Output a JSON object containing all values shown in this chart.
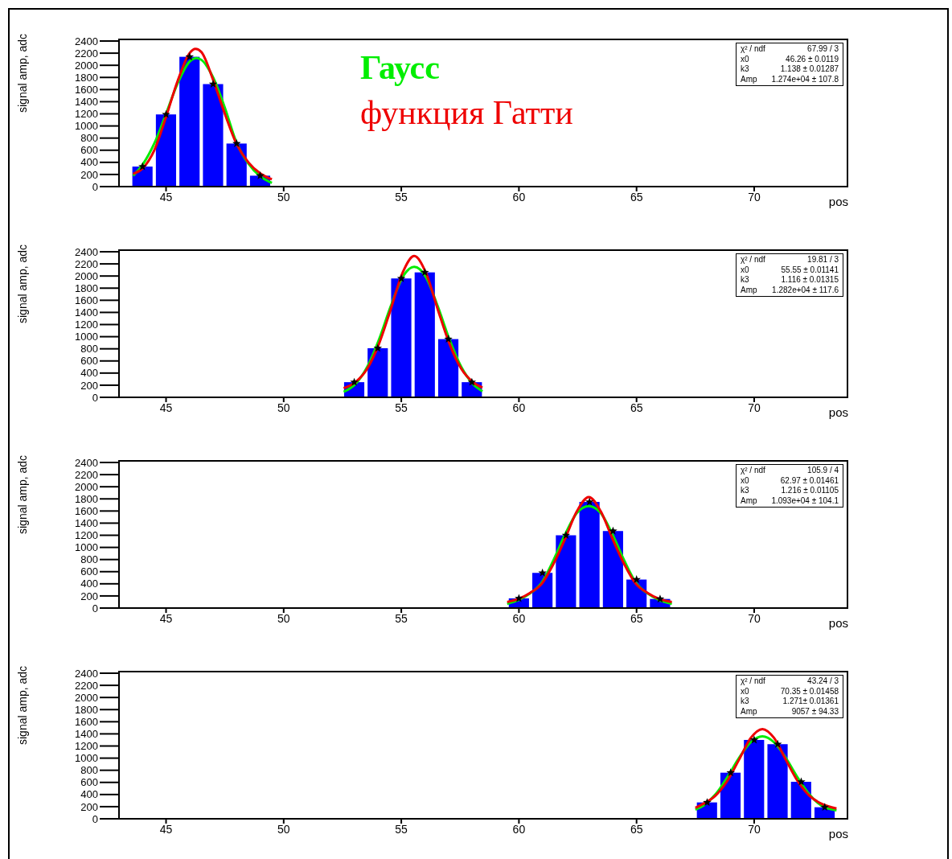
{
  "chart_data": [
    {
      "type": "histogram",
      "ylabel": "signal amp, adc",
      "xlabel": "pos",
      "xlim": [
        43,
        74
      ],
      "xticks": [
        45,
        50,
        55,
        60,
        65,
        70
      ],
      "ylim": [
        0,
        2440
      ],
      "yticks": [
        0,
        200,
        400,
        600,
        800,
        1000,
        1200,
        1400,
        1600,
        1800,
        2000,
        2200,
        2400
      ],
      "annotations": [
        "χ² / ndf",
        "67.99 / 3",
        "x0",
        "46.26 ± 0.0119",
        "k3",
        "1.138 ± 0.01287",
        "Amp",
        "1.274e+04 ± 107.8"
      ],
      "series": [
        {
          "color": "#0000ff",
          "bins": [
            43.5,
            44.5,
            45.5,
            46.5,
            47.5,
            48.5,
            49.5
          ],
          "values": [
            330,
            1190,
            2140,
            1690,
            710,
            180
          ]
        },
        {
          "type": "line",
          "name": "Гаусс",
          "color": "#00ee00",
          "x": [
            43.6,
            44,
            44.5,
            45,
            45.5,
            46,
            46.3,
            46.5,
            47,
            47.5,
            48,
            48.5,
            49,
            49.5
          ],
          "values": [
            180,
            360,
            710,
            1200,
            1710,
            2060,
            2120,
            2090,
            1800,
            1300,
            720,
            380,
            170,
            60
          ]
        },
        {
          "type": "line",
          "name": "функция Гатти",
          "color": "#ee0000",
          "x": [
            43.6,
            44,
            44.5,
            45,
            45.5,
            46,
            46.25,
            46.5,
            47,
            47.5,
            48,
            48.5,
            49,
            49.5
          ],
          "values": [
            210,
            300,
            600,
            1150,
            1750,
            2200,
            2270,
            2220,
            1760,
            1200,
            700,
            400,
            220,
            120
          ]
        },
        {
          "type": "scatter",
          "marker": "star",
          "color": "#000000",
          "x": [
            44,
            45,
            46,
            47,
            48,
            49
          ],
          "values": [
            330,
            1190,
            2140,
            1690,
            710,
            180
          ]
        }
      ]
    },
    {
      "type": "histogram",
      "ylabel": "signal amp, adc",
      "xlabel": "pos",
      "xlim": [
        43,
        74
      ],
      "xticks": [
        45,
        50,
        55,
        60,
        65,
        70
      ],
      "ylim": [
        0,
        2440
      ],
      "yticks": [
        0,
        200,
        400,
        600,
        800,
        1000,
        1200,
        1400,
        1600,
        1800,
        2000,
        2200,
        2400
      ],
      "annotations": [
        "χ² / ndf",
        "19.81 / 3",
        "x0",
        "55.55 ± 0.01141",
        "k3",
        "1.116 ± 0.01315",
        "Amp",
        "1.282e+04 ± 117.6"
      ],
      "series": [
        {
          "color": "#0000ff",
          "bins": [
            52.5,
            53.5,
            54.5,
            55.5,
            56.5,
            57.5,
            58.5
          ],
          "values": [
            250,
            810,
            1960,
            2060,
            960,
            250
          ]
        },
        {
          "type": "line",
          "color": "#00ee00",
          "x": [
            52.55,
            53.05,
            53.55,
            54.05,
            54.55,
            55.05,
            55.55,
            56.05,
            56.55,
            57.05,
            57.55,
            58.05,
            58.45
          ],
          "values": [
            90,
            220,
            500,
            950,
            1500,
            1980,
            2150,
            1980,
            1500,
            950,
            500,
            220,
            100
          ]
        },
        {
          "type": "line",
          "color": "#ee0000",
          "x": [
            52.55,
            53.05,
            53.55,
            54.05,
            54.55,
            55.05,
            55.55,
            56.05,
            56.55,
            57.05,
            57.55,
            58.05,
            58.45
          ],
          "values": [
            150,
            250,
            470,
            880,
            1450,
            2050,
            2330,
            2050,
            1450,
            880,
            470,
            250,
            160
          ]
        },
        {
          "type": "scatter",
          "marker": "star",
          "color": "#000000",
          "x": [
            53,
            54,
            55,
            56,
            57,
            58
          ],
          "values": [
            250,
            810,
            1960,
            2060,
            960,
            250
          ]
        }
      ]
    },
    {
      "type": "histogram",
      "ylabel": "signal amp, adc",
      "xlabel": "pos",
      "xlim": [
        43,
        74
      ],
      "xticks": [
        45,
        50,
        55,
        60,
        65,
        70
      ],
      "ylim": [
        0,
        2440
      ],
      "yticks": [
        0,
        200,
        400,
        600,
        800,
        1000,
        1200,
        1400,
        1600,
        1800,
        2000,
        2200,
        2400
      ],
      "annotations": [
        "χ² / ndf",
        "105.9 / 4",
        "x0",
        "62.97 ± 0.01461",
        "k3",
        "1.216 ± 0.01105",
        "Amp",
        "1.093e+04 ± 104.1"
      ],
      "series": [
        {
          "color": "#0000ff",
          "bins": [
            59.5,
            60.5,
            61.5,
            62.5,
            63.5,
            64.5,
            65.5,
            66.5
          ],
          "values": [
            160,
            580,
            1200,
            1750,
            1270,
            470,
            150
          ]
        },
        {
          "type": "line",
          "color": "#00ee00",
          "x": [
            59.5,
            59.97,
            60.47,
            60.97,
            61.47,
            61.97,
            62.47,
            62.97,
            63.47,
            63.97,
            64.47,
            64.97,
            65.47,
            65.97,
            66.5
          ],
          "values": [
            70,
            130,
            240,
            420,
            790,
            1220,
            1570,
            1680,
            1570,
            1220,
            790,
            420,
            240,
            130,
            70
          ]
        },
        {
          "type": "line",
          "color": "#ee0000",
          "x": [
            59.5,
            59.97,
            60.47,
            60.97,
            61.47,
            61.97,
            62.47,
            62.97,
            63.47,
            63.97,
            64.47,
            64.97,
            65.47,
            65.97,
            66.5
          ],
          "values": [
            100,
            150,
            250,
            400,
            730,
            1150,
            1600,
            1830,
            1600,
            1150,
            730,
            400,
            250,
            150,
            100
          ]
        },
        {
          "type": "scatter",
          "marker": "star",
          "color": "#000000",
          "x": [
            60,
            61,
            62,
            63,
            64,
            65,
            66
          ],
          "values": [
            160,
            580,
            1200,
            1750,
            1270,
            470,
            150
          ]
        }
      ]
    },
    {
      "type": "histogram",
      "ylabel": "signal amp, adc",
      "xlabel": "pos",
      "xlim": [
        43,
        74
      ],
      "xticks": [
        45,
        50,
        55,
        60,
        65,
        70
      ],
      "ylim": [
        0,
        2440
      ],
      "yticks": [
        0,
        200,
        400,
        600,
        800,
        1000,
        1200,
        1400,
        1600,
        1800,
        2000,
        2200,
        2400
      ],
      "annotations": [
        "χ² / ndf",
        "43.24 / 3",
        "x0",
        "70.35 ± 0.01458",
        "k3",
        "1.271± 0.01361",
        "Amp",
        "9057 ± 94.33"
      ],
      "series": [
        {
          "color": "#0000ff",
          "bins": [
            67.5,
            68.5,
            69.5,
            70.5,
            71.5,
            72.5,
            73.5
          ],
          "values": [
            270,
            760,
            1300,
            1230,
            610,
            190
          ]
        },
        {
          "type": "line",
          "color": "#00ee00",
          "x": [
            67.5,
            67.85,
            68.35,
            68.85,
            69.35,
            69.85,
            70.35,
            70.85,
            71.35,
            71.85,
            72.35,
            72.85,
            73.5
          ],
          "values": [
            150,
            220,
            400,
            680,
            1000,
            1260,
            1360,
            1260,
            1000,
            680,
            400,
            220,
            140
          ]
        },
        {
          "type": "line",
          "color": "#ee0000",
          "x": [
            67.5,
            67.85,
            68.35,
            68.85,
            69.35,
            69.85,
            70.35,
            70.85,
            71.35,
            71.85,
            72.35,
            72.85,
            73.5
          ],
          "values": [
            180,
            250,
            380,
            620,
            970,
            1330,
            1480,
            1330,
            970,
            620,
            380,
            250,
            170
          ]
        },
        {
          "type": "scatter",
          "marker": "star",
          "color": "#000000",
          "x": [
            68,
            69,
            70,
            71,
            72,
            73
          ],
          "values": [
            270,
            760,
            1300,
            1230,
            610,
            190
          ]
        }
      ]
    }
  ]
}
